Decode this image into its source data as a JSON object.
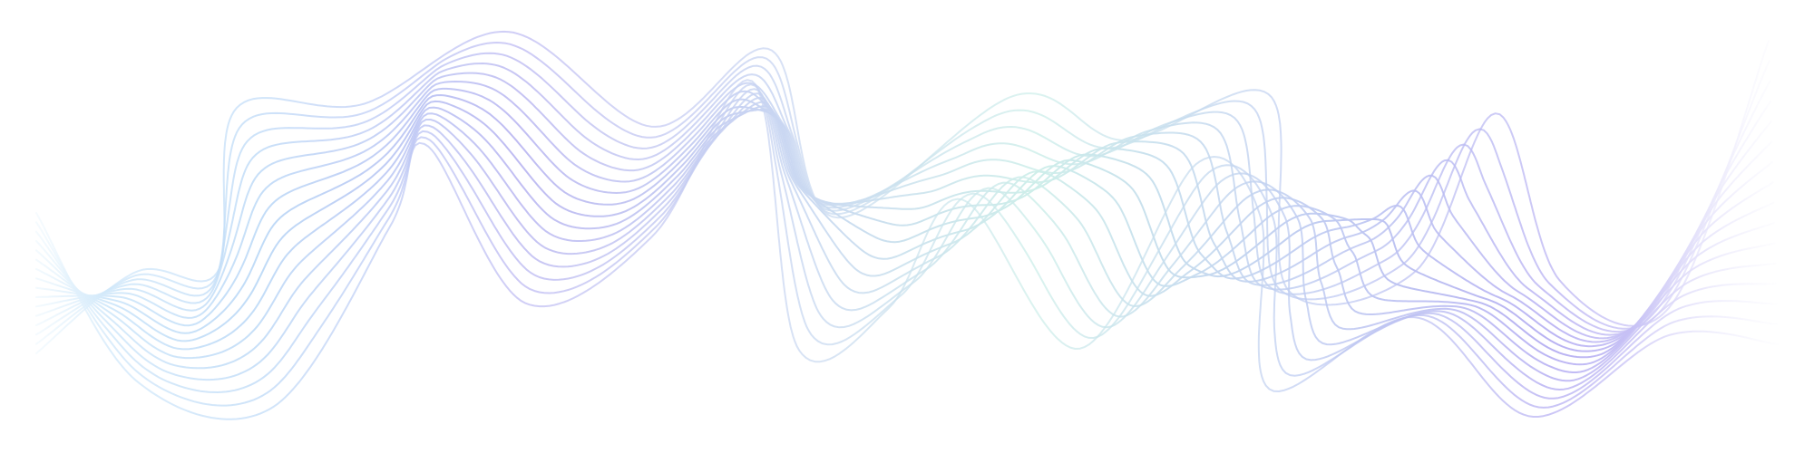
{
  "artwork": {
    "type": "decorative-wave-lines",
    "background": "#ffffff",
    "gradient_stops": [
      "#d6eefb",
      "#b5d5f6",
      "#b4b0f0",
      "#c1d0f0",
      "#c7ece7",
      "#b9c8f0",
      "#b0a8f1",
      "#e6e4fb"
    ],
    "line_count": 16
  }
}
